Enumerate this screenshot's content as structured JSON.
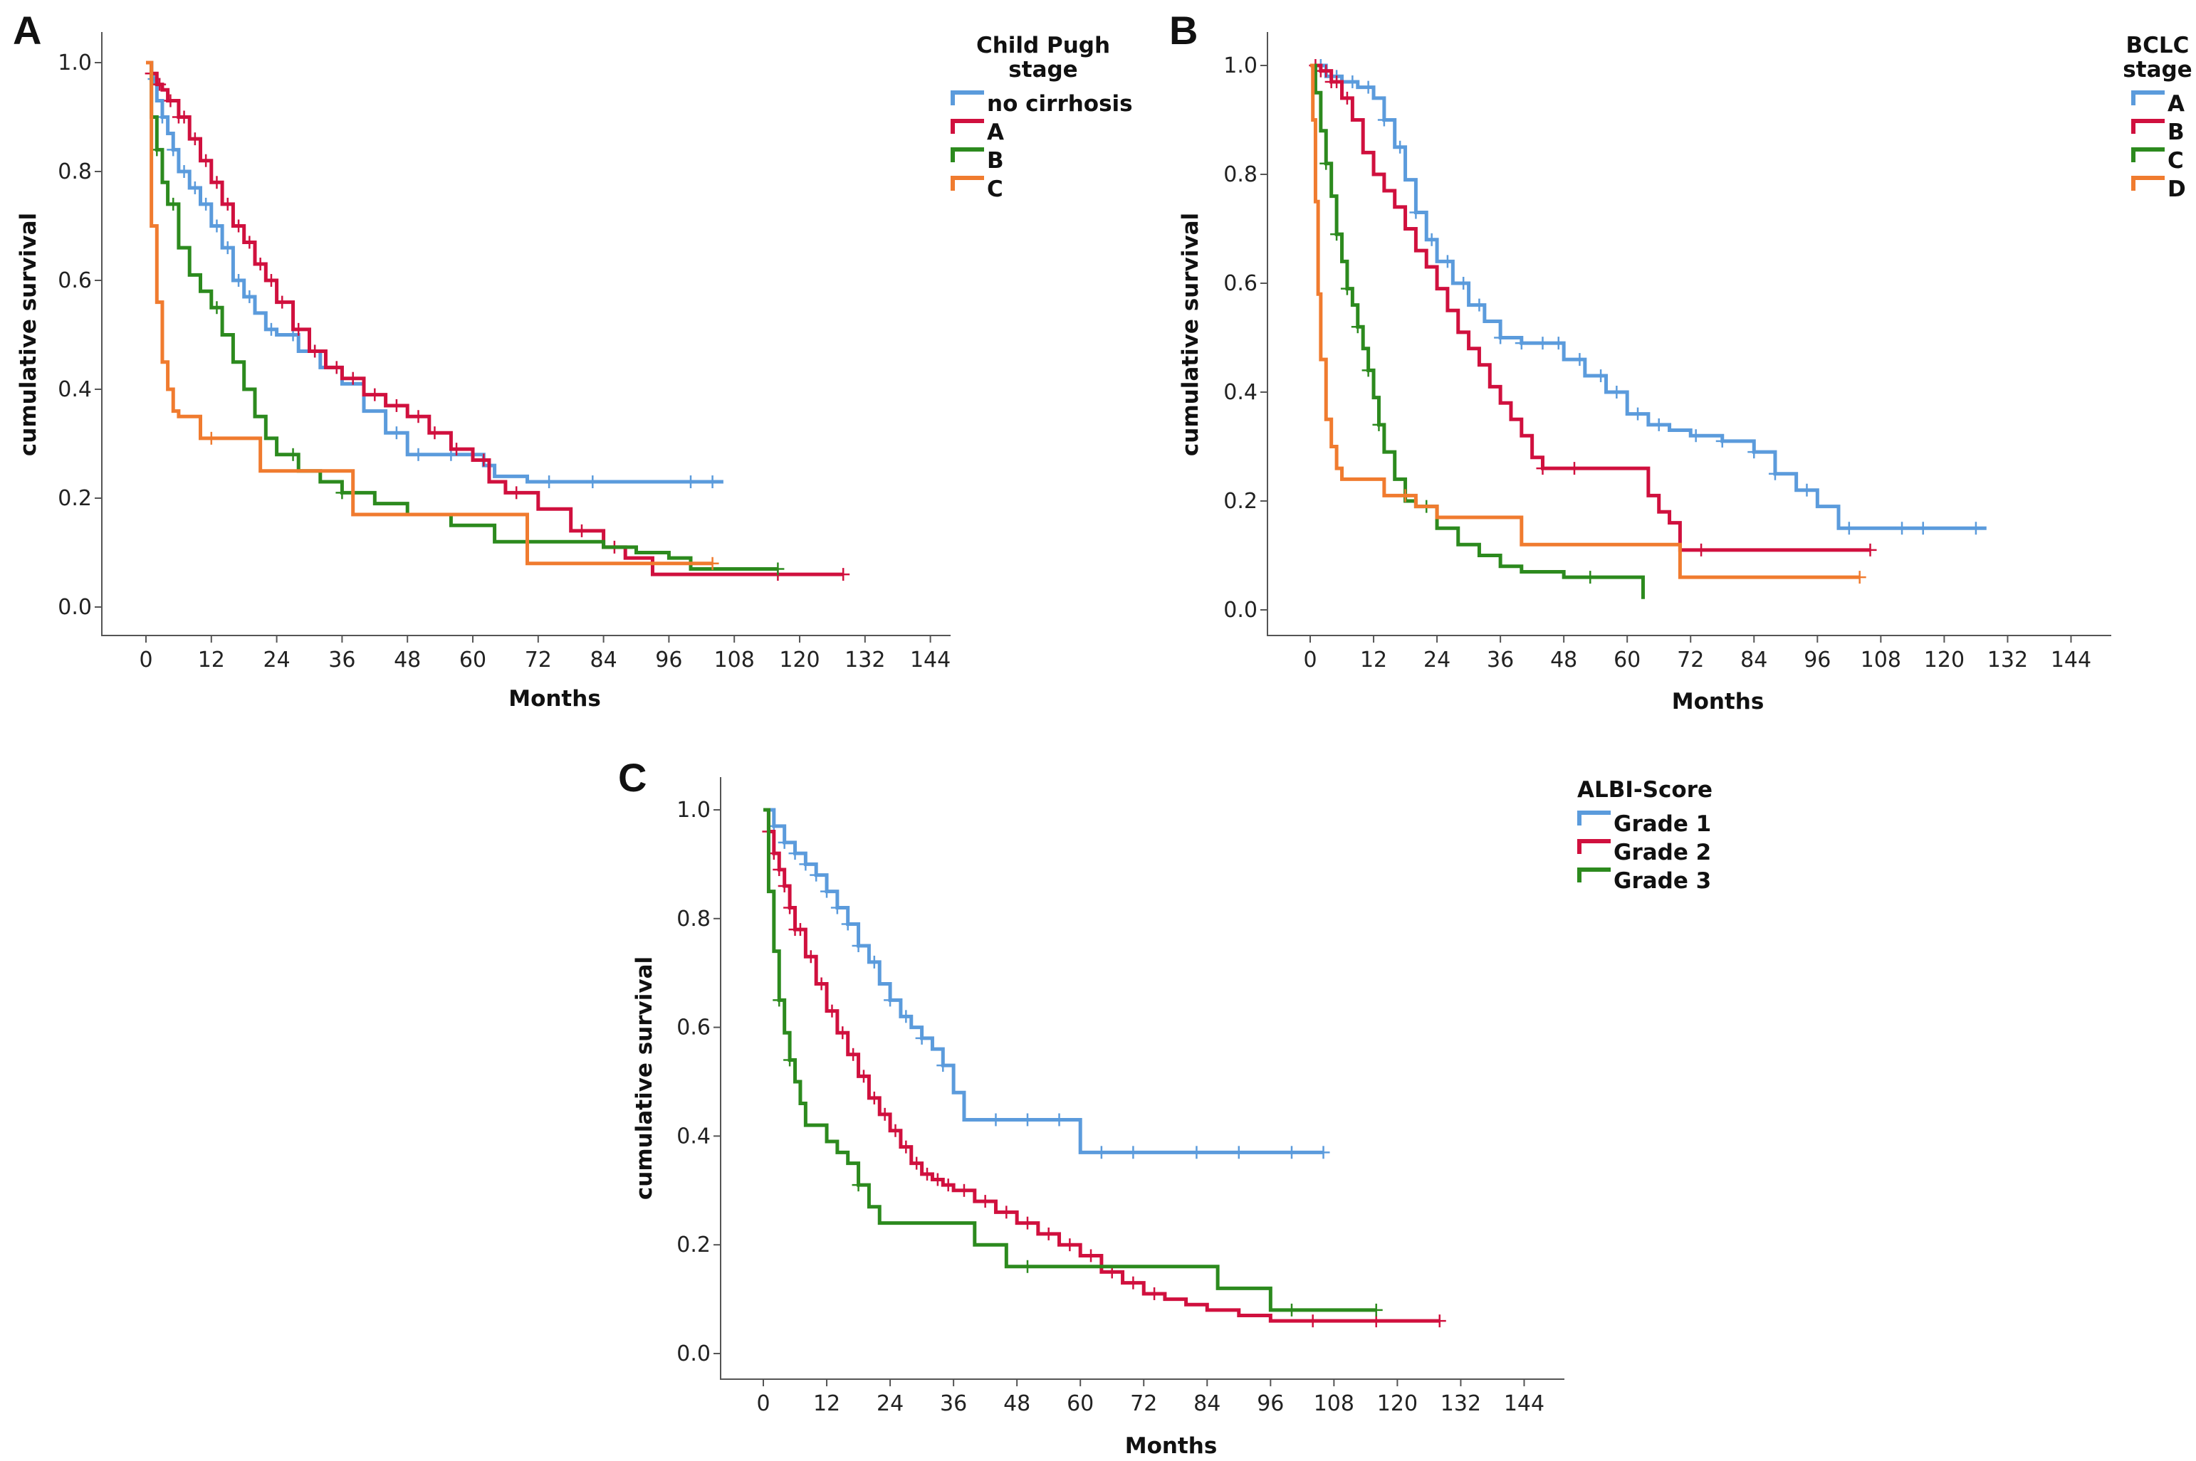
{
  "colors": {
    "blue": "#5b9bdc",
    "red": "#d0103e",
    "green": "#2c8a1e",
    "orange": "#f07b2f"
  },
  "chart_data": [
    {
      "type": "line",
      "panel": "A",
      "xlabel": "Months",
      "ylabel": "cumulative survival",
      "xticks": [
        "0",
        "12",
        "24",
        "36",
        "48",
        "60",
        "72",
        "84",
        "96",
        "108",
        "120",
        "132",
        "144"
      ],
      "yticks": [
        "0.0",
        "0.2",
        "0.4",
        "0.6",
        "0.8",
        "1.0"
      ],
      "xlim": [
        0,
        144
      ],
      "ylim": [
        0,
        1
      ],
      "legend_title": "Child Pugh stage",
      "legend_title_lines": [
        "Child Pugh",
        "stage"
      ],
      "series": [
        {
          "name": "no cirrhosis",
          "color": "#5b9bdc",
          "x": [
            0,
            1,
            2,
            3,
            4,
            5,
            6,
            8,
            10,
            12,
            14,
            16,
            18,
            20,
            22,
            24,
            28,
            32,
            36,
            40,
            44,
            48,
            54,
            58,
            60,
            62,
            64,
            70,
            80,
            90,
            100,
            106
          ],
          "y": [
            1.0,
            0.97,
            0.93,
            0.9,
            0.87,
            0.84,
            0.8,
            0.77,
            0.74,
            0.7,
            0.66,
            0.6,
            0.57,
            0.54,
            0.51,
            0.5,
            0.47,
            0.44,
            0.41,
            0.36,
            0.32,
            0.28,
            0.28,
            0.28,
            0.28,
            0.26,
            0.24,
            0.23,
            0.23,
            0.23,
            0.23,
            0.23
          ],
          "censored": [
            1.5,
            3,
            5,
            7,
            9,
            11,
            13,
            15,
            17,
            19,
            23,
            27,
            31,
            35,
            46,
            50,
            56,
            60,
            74,
            82,
            100,
            104
          ]
        },
        {
          "name": "A",
          "color": "#d0103e",
          "x": [
            0,
            1,
            2,
            3,
            4,
            6,
            8,
            10,
            12,
            14,
            16,
            18,
            20,
            22,
            24,
            27,
            30,
            33,
            36,
            40,
            44,
            48,
            52,
            56,
            60,
            63,
            66,
            72,
            78,
            84,
            88,
            93,
            100,
            110,
            120,
            128
          ],
          "y": [
            1.0,
            0.98,
            0.96,
            0.95,
            0.93,
            0.9,
            0.86,
            0.82,
            0.78,
            0.74,
            0.7,
            0.67,
            0.63,
            0.6,
            0.56,
            0.51,
            0.47,
            0.44,
            0.42,
            0.39,
            0.37,
            0.35,
            0.32,
            0.29,
            0.27,
            0.23,
            0.21,
            0.18,
            0.14,
            0.11,
            0.09,
            0.06,
            0.06,
            0.06,
            0.06,
            0.06
          ],
          "censored": [
            1,
            2.5,
            4.5,
            6,
            7,
            9,
            11,
            13,
            15,
            17,
            19,
            21,
            23,
            25,
            28,
            31,
            35,
            38,
            42,
            46,
            50,
            53,
            57,
            62,
            68,
            80,
            86,
            116,
            128
          ]
        },
        {
          "name": "B",
          "color": "#2c8a1e",
          "x": [
            0,
            1,
            2,
            3,
            4,
            6,
            8,
            10,
            12,
            14,
            16,
            18,
            20,
            22,
            24,
            28,
            32,
            36,
            42,
            48,
            56,
            64,
            72,
            84,
            90,
            96,
            100,
            110,
            116
          ],
          "y": [
            1.0,
            0.9,
            0.84,
            0.78,
            0.74,
            0.66,
            0.61,
            0.58,
            0.55,
            0.5,
            0.45,
            0.4,
            0.35,
            0.31,
            0.28,
            0.25,
            0.23,
            0.21,
            0.19,
            0.17,
            0.15,
            0.12,
            0.12,
            0.11,
            0.1,
            0.09,
            0.07,
            0.07,
            0.07
          ],
          "censored": [
            2,
            5,
            13,
            27,
            36,
            116
          ]
        },
        {
          "name": "C",
          "color": "#f07b2f",
          "x": [
            0,
            1,
            2,
            3,
            4,
            5,
            6,
            10,
            16,
            21,
            26,
            33,
            38,
            44,
            50,
            60,
            68,
            70,
            76,
            84,
            94,
            100,
            104
          ],
          "y": [
            1.0,
            0.7,
            0.56,
            0.45,
            0.4,
            0.36,
            0.35,
            0.31,
            0.31,
            0.25,
            0.25,
            0.25,
            0.17,
            0.17,
            0.17,
            0.17,
            0.17,
            0.08,
            0.08,
            0.08,
            0.08,
            0.08,
            0.08
          ],
          "censored": [
            12,
            104
          ]
        }
      ]
    },
    {
      "type": "line",
      "panel": "B",
      "xlabel": "Months",
      "ylabel": "cumulative survival",
      "xticks": [
        "0",
        "12",
        "24",
        "36",
        "48",
        "60",
        "72",
        "84",
        "96",
        "108",
        "120",
        "132",
        "144"
      ],
      "yticks": [
        "0.0",
        "0.2",
        "0.4",
        "0.6",
        "0.8",
        "1.0"
      ],
      "xlim": [
        0,
        144
      ],
      "ylim": [
        0,
        1
      ],
      "legend_title": "BCLC stage",
      "legend_title_lines": [
        "BCLC",
        "stage"
      ],
      "series": [
        {
          "name": "A",
          "color": "#5b9bdc",
          "x": [
            0,
            3,
            6,
            9,
            12,
            14,
            16,
            18,
            20,
            22,
            24,
            27,
            30,
            33,
            36,
            40,
            44,
            48,
            52,
            56,
            60,
            64,
            68,
            72,
            78,
            84,
            88,
            92,
            96,
            100,
            106,
            116,
            128
          ],
          "y": [
            1.0,
            0.98,
            0.97,
            0.96,
            0.94,
            0.9,
            0.85,
            0.79,
            0.73,
            0.68,
            0.64,
            0.6,
            0.56,
            0.53,
            0.5,
            0.49,
            0.49,
            0.46,
            0.43,
            0.4,
            0.36,
            0.34,
            0.33,
            0.32,
            0.31,
            0.29,
            0.25,
            0.22,
            0.19,
            0.15,
            0.15,
            0.15,
            0.15
          ],
          "censored": [
            2,
            5,
            8,
            11,
            14,
            17,
            20,
            23,
            26,
            29,
            32,
            36,
            40,
            44,
            47,
            51,
            55,
            58,
            62,
            66,
            73,
            78,
            84,
            88,
            94,
            102,
            112,
            116,
            126
          ]
        },
        {
          "name": "B",
          "color": "#d0103e",
          "x": [
            0,
            2,
            4,
            6,
            8,
            10,
            12,
            14,
            16,
            18,
            20,
            22,
            24,
            26,
            28,
            30,
            32,
            34,
            36,
            38,
            40,
            42,
            44,
            48,
            52,
            56,
            60,
            64,
            66,
            68,
            70,
            72,
            80,
            90,
            100,
            106
          ],
          "y": [
            1.0,
            0.99,
            0.97,
            0.94,
            0.9,
            0.84,
            0.8,
            0.77,
            0.74,
            0.7,
            0.66,
            0.63,
            0.59,
            0.55,
            0.51,
            0.48,
            0.45,
            0.41,
            0.38,
            0.35,
            0.32,
            0.28,
            0.26,
            0.26,
            0.26,
            0.26,
            0.26,
            0.21,
            0.18,
            0.16,
            0.11,
            0.11,
            0.11,
            0.11,
            0.11,
            0.11
          ],
          "censored": [
            1,
            2,
            3,
            4,
            5,
            7,
            44,
            50,
            74,
            106
          ]
        },
        {
          "name": "C",
          "color": "#2c8a1e",
          "x": [
            0,
            1,
            2,
            3,
            4,
            5,
            6,
            7,
            8,
            9,
            10,
            11,
            12,
            13,
            14,
            16,
            18,
            20,
            24,
            28,
            32,
            36,
            40,
            48,
            56,
            62,
            63
          ],
          "y": [
            1.0,
            0.95,
            0.88,
            0.82,
            0.76,
            0.69,
            0.64,
            0.59,
            0.56,
            0.52,
            0.48,
            0.44,
            0.39,
            0.34,
            0.29,
            0.24,
            0.2,
            0.19,
            0.15,
            0.12,
            0.1,
            0.08,
            0.07,
            0.06,
            0.06,
            0.06,
            0.02
          ],
          "censored": [
            3,
            5,
            7,
            9,
            11,
            13,
            22,
            53
          ]
        },
        {
          "name": "D",
          "color": "#f07b2f",
          "x": [
            0,
            0.5,
            1,
            1.5,
            2,
            3,
            4,
            5,
            6,
            7,
            10,
            14,
            20,
            24,
            28,
            36,
            40,
            48,
            56,
            64,
            70,
            80,
            90,
            100,
            104
          ],
          "y": [
            1.0,
            0.9,
            0.75,
            0.58,
            0.46,
            0.35,
            0.3,
            0.26,
            0.24,
            0.24,
            0.24,
            0.21,
            0.19,
            0.17,
            0.17,
            0.17,
            0.12,
            0.12,
            0.12,
            0.12,
            0.06,
            0.06,
            0.06,
            0.06,
            0.06
          ],
          "censored": [
            18,
            104
          ]
        }
      ]
    },
    {
      "type": "line",
      "panel": "C",
      "xlabel": "Months",
      "ylabel": "cumulative survival",
      "xticks": [
        "0",
        "12",
        "24",
        "36",
        "48",
        "60",
        "72",
        "84",
        "96",
        "108",
        "120",
        "132",
        "144"
      ],
      "yticks": [
        "0.0",
        "0.2",
        "0.4",
        "0.6",
        "0.8",
        "1.0"
      ],
      "xlim": [
        0,
        144
      ],
      "ylim": [
        0,
        1
      ],
      "legend_title": "ALBI-Score",
      "legend_title_lines": [
        "ALBI-Score"
      ],
      "series": [
        {
          "name": "Grade 1",
          "color": "#5b9bdc",
          "x": [
            0,
            2,
            4,
            6,
            8,
            10,
            12,
            14,
            16,
            18,
            20,
            22,
            24,
            26,
            28,
            30,
            32,
            34,
            36,
            38,
            40,
            44,
            50,
            56,
            60,
            64,
            70,
            80,
            90,
            100,
            106
          ],
          "y": [
            1.0,
            0.97,
            0.94,
            0.92,
            0.9,
            0.88,
            0.85,
            0.82,
            0.79,
            0.75,
            0.72,
            0.68,
            0.65,
            0.62,
            0.6,
            0.58,
            0.56,
            0.53,
            0.48,
            0.43,
            0.43,
            0.43,
            0.43,
            0.43,
            0.37,
            0.37,
            0.37,
            0.37,
            0.37,
            0.37,
            0.37
          ],
          "censored": [
            2,
            4,
            6,
            8,
            10,
            12,
            14,
            16,
            18,
            21,
            24,
            27,
            30,
            34,
            44,
            50,
            56,
            64,
            70,
            82,
            90,
            100,
            106
          ]
        },
        {
          "name": "Grade 2",
          "color": "#d0103e",
          "x": [
            0,
            1,
            2,
            3,
            4,
            5,
            6,
            8,
            10,
            12,
            14,
            16,
            18,
            20,
            22,
            24,
            26,
            28,
            30,
            32,
            34,
            36,
            40,
            44,
            48,
            52,
            56,
            60,
            64,
            68,
            72,
            76,
            80,
            84,
            90,
            96,
            104,
            116,
            128
          ],
          "y": [
            1.0,
            0.96,
            0.92,
            0.89,
            0.86,
            0.82,
            0.78,
            0.73,
            0.68,
            0.63,
            0.59,
            0.55,
            0.51,
            0.47,
            0.44,
            0.41,
            0.38,
            0.35,
            0.33,
            0.32,
            0.31,
            0.3,
            0.28,
            0.26,
            0.24,
            0.22,
            0.2,
            0.18,
            0.15,
            0.13,
            0.11,
            0.1,
            0.09,
            0.08,
            0.07,
            0.06,
            0.06,
            0.06,
            0.06
          ],
          "censored": [
            1,
            2,
            3,
            4,
            5,
            6,
            7,
            9,
            11,
            13,
            15,
            17,
            19,
            21,
            23,
            25,
            27,
            29,
            31,
            33,
            35,
            38,
            42,
            46,
            50,
            54,
            58,
            62,
            66,
            70,
            74,
            104,
            116,
            128
          ]
        },
        {
          "name": "Grade 3",
          "color": "#2c8a1e",
          "x": [
            0,
            1,
            2,
            3,
            4,
            5,
            6,
            7,
            8,
            10,
            12,
            14,
            16,
            18,
            20,
            22,
            24,
            30,
            36,
            40,
            46,
            56,
            60,
            66,
            72,
            80,
            86,
            90,
            96,
            100,
            110,
            116
          ],
          "y": [
            1.0,
            0.85,
            0.74,
            0.65,
            0.59,
            0.54,
            0.5,
            0.46,
            0.42,
            0.42,
            0.39,
            0.37,
            0.35,
            0.31,
            0.27,
            0.24,
            0.24,
            0.24,
            0.24,
            0.2,
            0.16,
            0.16,
            0.16,
            0.16,
            0.16,
            0.16,
            0.12,
            0.12,
            0.08,
            0.08,
            0.08,
            0.08
          ],
          "censored": [
            3,
            5,
            18,
            50,
            100,
            116
          ]
        }
      ]
    }
  ]
}
